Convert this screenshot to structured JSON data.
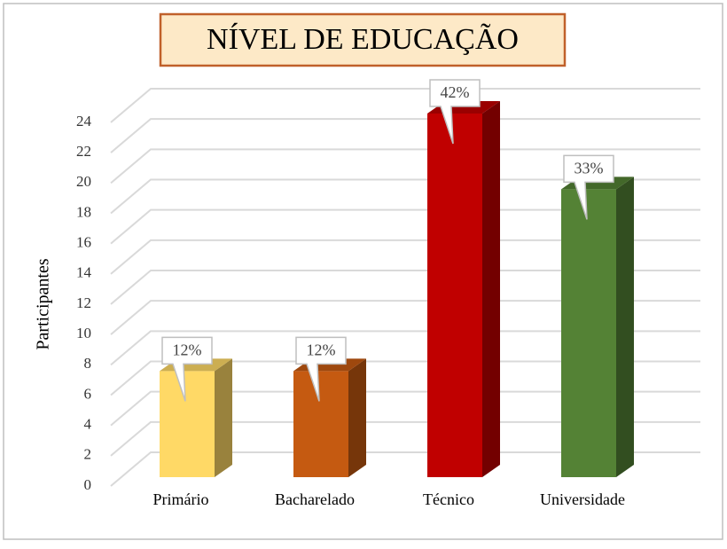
{
  "chart_data": {
    "type": "bar3d",
    "title": "NÍVEL DE EDUCAÇÃO",
    "y_label": "Participantes",
    "categories": [
      "Primário",
      "Bacharelado",
      "Técnico",
      "Universidade"
    ],
    "values": [
      7,
      7,
      24,
      19
    ],
    "value_labels": [
      "12%",
      "12%",
      "42%",
      "33%"
    ],
    "colors": [
      "#ffd966",
      "#c55a11",
      "#c00000",
      "#548235"
    ],
    "ylim": [
      0,
      24
    ],
    "yticks": [
      0,
      2,
      4,
      6,
      8,
      10,
      12,
      14,
      16,
      18,
      20,
      22,
      24
    ],
    "grid": true
  }
}
